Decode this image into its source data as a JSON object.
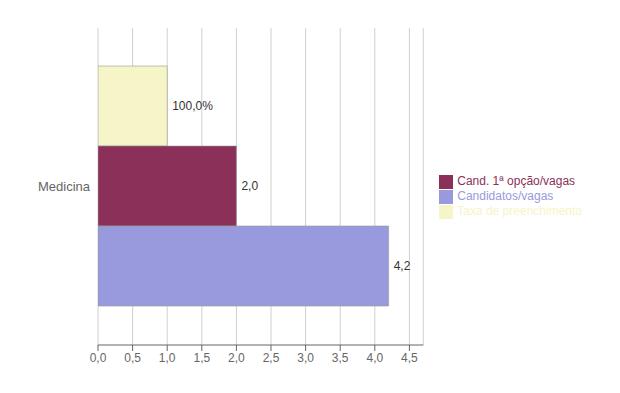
{
  "chart_data": {
    "type": "bar",
    "orientation": "horizontal",
    "categories": [
      "Medicina"
    ],
    "series": [
      {
        "name": "Taxa de preenchimento",
        "color": "#f5f5c8",
        "values": [
          1.0
        ],
        "value_labels": [
          "100,0%"
        ]
      },
      {
        "name": "Cand. 1ª opção/vagas",
        "color": "#8b3058",
        "values": [
          2.0
        ],
        "value_labels": [
          "2,0"
        ]
      },
      {
        "name": "Candidatos/vagas",
        "color": "#9999dd",
        "values": [
          4.2
        ],
        "value_labels": [
          "4,2"
        ]
      }
    ],
    "xlim": [
      0,
      4.7
    ],
    "xticks": [
      {
        "value": 0.0,
        "label": "0,0"
      },
      {
        "value": 0.5,
        "label": "0,5"
      },
      {
        "value": 1.0,
        "label": "1,0"
      },
      {
        "value": 1.5,
        "label": "1,5"
      },
      {
        "value": 2.0,
        "label": "2,0"
      },
      {
        "value": 2.5,
        "label": "2,5"
      },
      {
        "value": 3.0,
        "label": "3,0"
      },
      {
        "value": 3.5,
        "label": "3,5"
      },
      {
        "value": 4.0,
        "label": "4,0"
      },
      {
        "value": 4.5,
        "label": "4,5"
      }
    ],
    "grid": true,
    "legend": "right",
    "data_labels": true
  }
}
